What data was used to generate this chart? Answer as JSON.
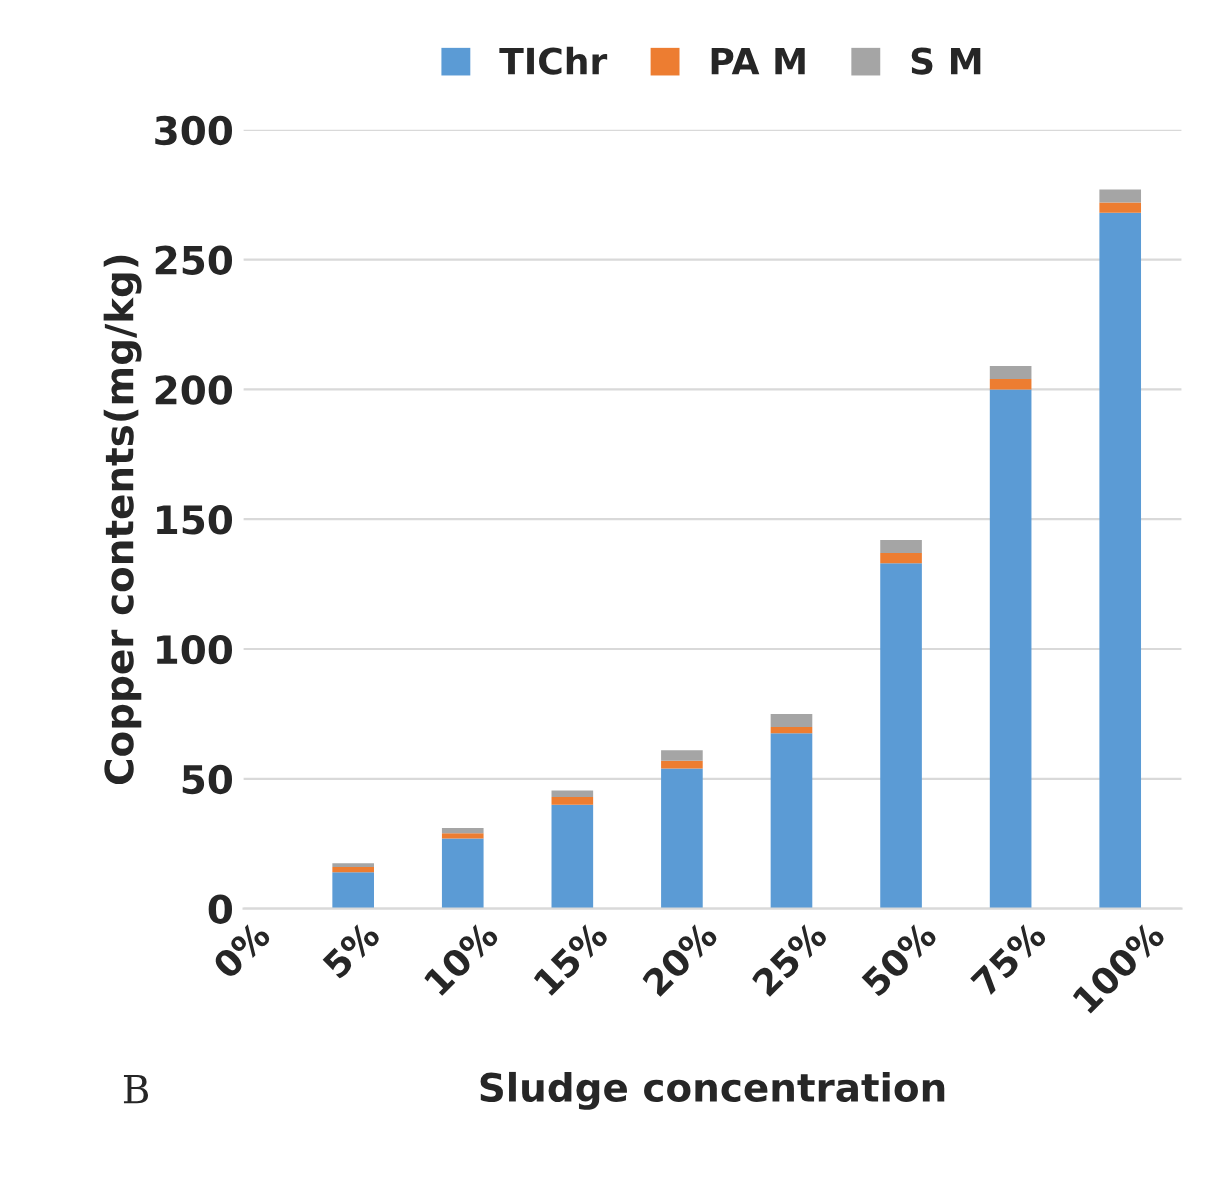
{
  "chart_data": {
    "type": "bar",
    "stacked": true,
    "xlabel": "Sludge concentration",
    "ylabel": "Copper contents(mg/kg)",
    "categories": [
      "0%",
      "5%",
      "10%",
      "15%",
      "20%",
      "25%",
      "50%",
      "75%",
      "100%"
    ],
    "series": [
      {
        "name": "TIChr",
        "color": "#5b9bd5",
        "values": [
          null,
          14,
          27,
          40,
          54,
          67.5,
          133,
          200,
          268
        ]
      },
      {
        "name": "PA M",
        "color": "#ed7d31",
        "values": [
          null,
          2,
          2,
          3,
          3,
          2.5,
          4,
          4,
          4
        ]
      },
      {
        "name": "S M",
        "color": "#a5a5a5",
        "values": [
          null,
          1.5,
          2,
          2.5,
          4,
          5,
          5,
          5,
          5
        ]
      }
    ],
    "ylim": [
      0,
      300
    ],
    "yticks": [
      0,
      50,
      100,
      150,
      200,
      250,
      300
    ],
    "grid": "y",
    "legend": "top",
    "annotations": [
      "B"
    ]
  }
}
